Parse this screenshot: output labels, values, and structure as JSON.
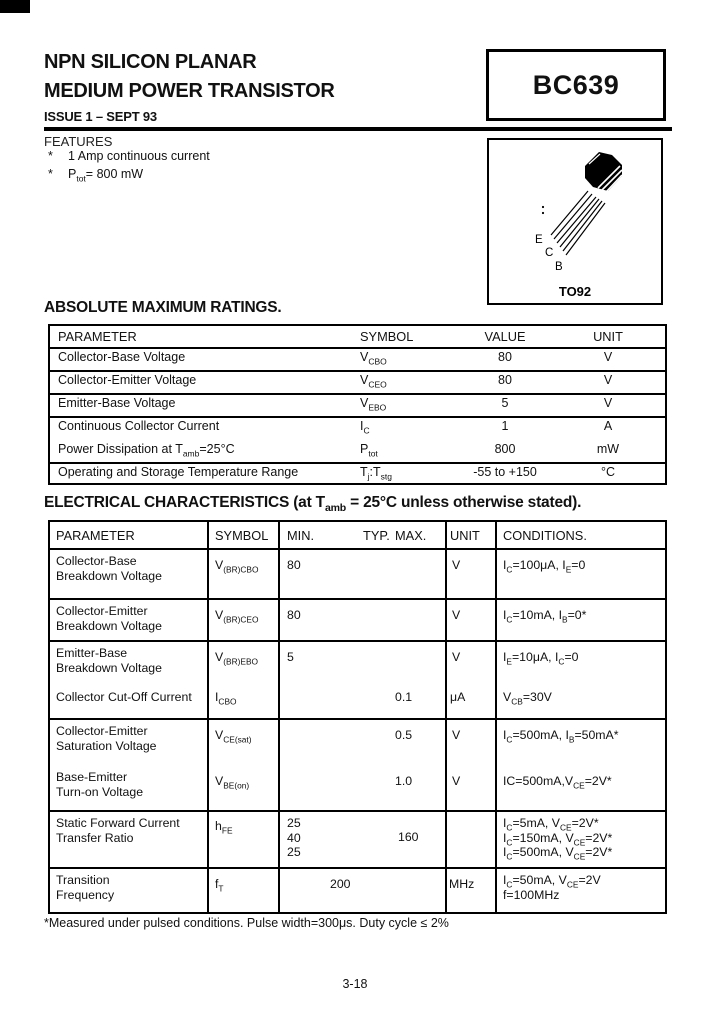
{
  "page": {
    "title_line1": "NPN SILICON PLANAR",
    "title_line2": "MEDIUM POWER TRANSISTOR",
    "issue": "ISSUE 1 – SEPT 93",
    "part_number": "BC639",
    "footnote": "*Measured under pulsed conditions. Pulse width=300μs. Duty cycle ≤ 2%",
    "page_number": "3-18"
  },
  "features": {
    "heading": "FEATURES",
    "items": [
      {
        "bullet": "*",
        "text": [
          {
            "t": "1 Amp continuous current"
          }
        ]
      },
      {
        "bullet": "*",
        "text": [
          {
            "t": "P"
          },
          {
            "sub": "tot"
          },
          {
            "t": "= 800 mW"
          }
        ]
      }
    ]
  },
  "package": {
    "name": "TO92",
    "pins": [
      "E",
      "C",
      "B"
    ]
  },
  "amr": {
    "heading": "ABSOLUTE MAXIMUM RATINGS.",
    "headers": [
      "PARAMETER",
      "SYMBOL",
      "VALUE",
      "UNIT"
    ],
    "rows": [
      {
        "parameter": [
          {
            "t": "Collector-Base Voltage"
          }
        ],
        "symbol": [
          {
            "t": "V"
          },
          {
            "sub": "CBO"
          }
        ],
        "value": "80",
        "unit": "V"
      },
      {
        "parameter": [
          {
            "t": "Collector-Emitter Voltage"
          }
        ],
        "symbol": [
          {
            "t": "V"
          },
          {
            "sub": "CEO"
          }
        ],
        "value": "80",
        "unit": "V"
      },
      {
        "parameter": [
          {
            "t": "Emitter-Base Voltage"
          }
        ],
        "symbol": [
          {
            "t": "V"
          },
          {
            "sub": "EBO"
          }
        ],
        "value": "5",
        "unit": "V"
      },
      {
        "parameter": [
          {
            "t": "Continuous Collector Current"
          }
        ],
        "symbol": [
          {
            "t": "I"
          },
          {
            "sub": "C"
          }
        ],
        "value": "1",
        "unit": "A"
      },
      {
        "parameter": [
          {
            "t": "Power Dissipation at T"
          },
          {
            "sub": "amb"
          },
          {
            "t": "=25°C"
          }
        ],
        "symbol": [
          {
            "t": "P"
          },
          {
            "sub": "tot"
          }
        ],
        "value": "800",
        "unit": "mW"
      },
      {
        "parameter": [
          {
            "t": "Operating and Storage Temperature Range"
          }
        ],
        "symbol": [
          {
            "t": "T"
          },
          {
            "sub": "j"
          },
          {
            "t": ":T"
          },
          {
            "sub": "stg"
          }
        ],
        "value": "-55 to +150",
        "unit": "°C"
      }
    ]
  },
  "ec": {
    "heading": [
      {
        "t": "ELECTRICAL CHARACTERISTICS (at T"
      },
      {
        "sub": "amb"
      },
      {
        "t": " = 25°C unless otherwise stated)."
      }
    ],
    "headers": {
      "parameter": "PARAMETER",
      "symbol": "SYMBOL",
      "min": "MIN.",
      "typ": "TYP.",
      "max": "MAX.",
      "unit": "UNIT",
      "conditions": "CONDITIONS."
    },
    "rows": [
      {
        "parameter": [
          {
            "t": "Collector-Base"
          },
          {
            "br": true
          },
          {
            "t": "Breakdown Voltage"
          }
        ],
        "symbol": [
          {
            "t": "V"
          },
          {
            "sub": "(BR)CBO"
          }
        ],
        "min": "80",
        "typ": "",
        "max": "",
        "unit": "V",
        "conditions": [
          {
            "t": "I"
          },
          {
            "sub": "C"
          },
          {
            "t": "=100μA, I"
          },
          {
            "sub": "E"
          },
          {
            "t": "=0"
          }
        ]
      },
      {
        "parameter": [
          {
            "t": "Collector-Emitter"
          },
          {
            "br": true
          },
          {
            "t": "Breakdown Voltage"
          }
        ],
        "symbol": [
          {
            "t": "V"
          },
          {
            "sub": "(BR)CEO"
          }
        ],
        "min": "80",
        "typ": "",
        "max": "",
        "unit": "V",
        "conditions": [
          {
            "t": "I"
          },
          {
            "sub": "C"
          },
          {
            "t": "=10mA, I"
          },
          {
            "sub": "B"
          },
          {
            "t": "=0*"
          }
        ]
      },
      {
        "parameter": [
          {
            "t": "Emitter-Base"
          },
          {
            "br": true
          },
          {
            "t": "Breakdown Voltage"
          }
        ],
        "symbol": [
          {
            "t": "V"
          },
          {
            "sub": "(BR)EBO"
          }
        ],
        "min": "5",
        "typ": "",
        "max": "",
        "unit": "V",
        "conditions": [
          {
            "t": "I"
          },
          {
            "sub": "E"
          },
          {
            "t": "=10μA, I"
          },
          {
            "sub": "C"
          },
          {
            "t": "=0"
          }
        ]
      },
      {
        "parameter": [
          {
            "t": "Collector Cut-Off Current"
          }
        ],
        "symbol": [
          {
            "t": "I"
          },
          {
            "sub": "CBO"
          }
        ],
        "min": "",
        "typ": "",
        "max": "0.1",
        "unit": "μA",
        "conditions": [
          {
            "t": "V"
          },
          {
            "sub": "CB"
          },
          {
            "t": "=30V"
          }
        ]
      },
      {
        "parameter": [
          {
            "t": "Collector-Emitter"
          },
          {
            "br": true
          },
          {
            "t": "Saturation Voltage"
          }
        ],
        "symbol": [
          {
            "t": "V"
          },
          {
            "sub": "CE(sat)"
          }
        ],
        "min": "",
        "typ": "",
        "max": "0.5",
        "unit": "V",
        "conditions": [
          {
            "t": "I"
          },
          {
            "sub": "C"
          },
          {
            "t": "=500mA, I"
          },
          {
            "sub": "B"
          },
          {
            "t": "=50mA*"
          }
        ]
      },
      {
        "parameter": [
          {
            "t": "Base-Emitter"
          },
          {
            "br": true
          },
          {
            "t": "Turn-on Voltage"
          }
        ],
        "symbol": [
          {
            "t": "V"
          },
          {
            "sub": "BE(on)"
          }
        ],
        "min": "",
        "typ": "",
        "max": "1.0",
        "unit": "V",
        "conditions": [
          {
            "t": "IC=500mA,V"
          },
          {
            "sub": "CE"
          },
          {
            "t": "=2V*"
          }
        ]
      },
      {
        "parameter": [
          {
            "t": "Static Forward Current"
          },
          {
            "br": true
          },
          {
            "t": "Transfer Ratio"
          }
        ],
        "symbol": [
          {
            "t": "h"
          },
          {
            "sub": "FE"
          }
        ],
        "min_lines": [
          "25",
          "40",
          "25"
        ],
        "typ": "",
        "max": "160",
        "unit": "",
        "conditions": [
          {
            "t": "I"
          },
          {
            "sub": "C"
          },
          {
            "t": "=5mA, V"
          },
          {
            "sub": "CE"
          },
          {
            "t": "=2V*"
          },
          {
            "br": true
          },
          {
            "t": "I"
          },
          {
            "sub": "C"
          },
          {
            "t": "=150mA, V"
          },
          {
            "sub": "CE"
          },
          {
            "t": "=2V*"
          },
          {
            "br": true
          },
          {
            "t": "I"
          },
          {
            "sub": "C"
          },
          {
            "t": "=500mA, V"
          },
          {
            "sub": "CE"
          },
          {
            "t": "=2V*"
          }
        ]
      },
      {
        "parameter": [
          {
            "t": "Transition"
          },
          {
            "br": true
          },
          {
            "t": "Frequency"
          }
        ],
        "symbol": [
          {
            "t": "f"
          },
          {
            "sub": "T"
          }
        ],
        "min": "",
        "typ": "200",
        "max": "",
        "unit": "MHz",
        "conditions": [
          {
            "t": "I"
          },
          {
            "sub": "C"
          },
          {
            "t": "=50mA, V"
          },
          {
            "sub": "CE"
          },
          {
            "t": "=2V"
          },
          {
            "br": true
          },
          {
            "t": "f=100MHz"
          }
        ]
      }
    ]
  }
}
